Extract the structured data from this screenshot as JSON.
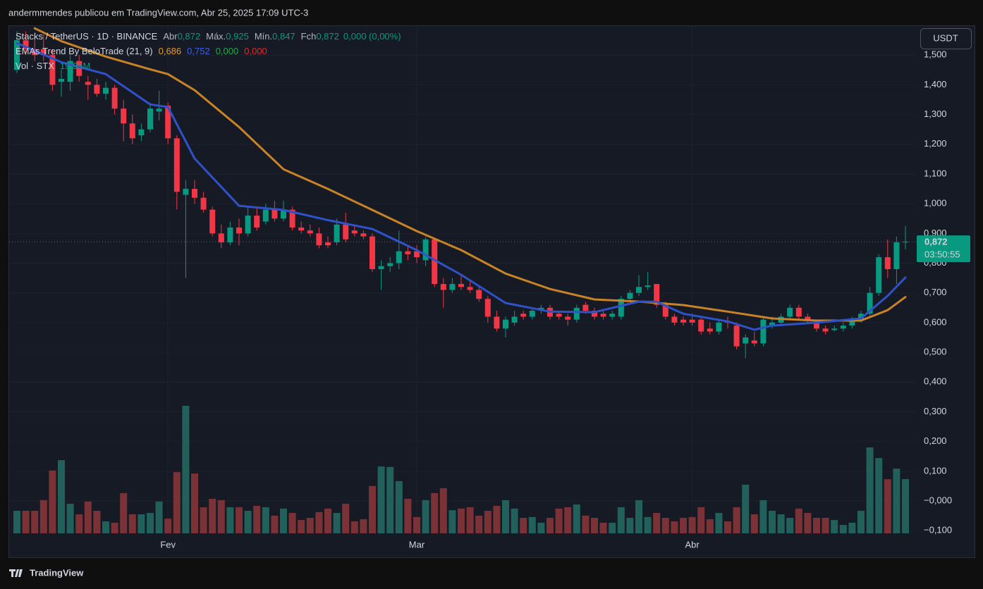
{
  "header": "andermmendes publicou em TradingView.com, Abr 25, 2025 17:09 UTC-3",
  "currency_button": "USDT",
  "footer_logo": "TradingView",
  "legend": {
    "symbol": "Stacks / TetherUS · 1D · BINANCE",
    "ohlc": [
      {
        "label": "Abr",
        "value": "0,872"
      },
      {
        "label": "Máx.",
        "value": "0,925"
      },
      {
        "label": "Mín.",
        "value": "0,847"
      },
      {
        "label": "Fch",
        "value": "0,872"
      }
    ],
    "change": "0,000 (0,00%)",
    "indicator": "EMAs Trend By BeloTrade (21, 9)",
    "indicator_values": [
      "0,686",
      "0,752",
      "0,000",
      "0,000"
    ],
    "volume": "Vol · STX",
    "volume_value": "19.95M"
  },
  "price_label": {
    "value": 0.872,
    "label": "0,872",
    "countdown": "03:50:55"
  },
  "chart_data": {
    "type": "candlestick",
    "up_color": "#089981",
    "down_color": "#f23645",
    "volume_colors": {
      "up": "#22605c",
      "down": "#7b3237"
    },
    "categories": [
      null,
      null,
      null,
      null,
      null,
      null,
      null,
      null,
      null,
      null,
      null,
      null,
      null,
      null,
      null,
      null,
      null,
      "Fev",
      null,
      null,
      null,
      null,
      null,
      null,
      null,
      null,
      null,
      null,
      null,
      null,
      null,
      null,
      null,
      null,
      null,
      null,
      null,
      null,
      null,
      null,
      null,
      null,
      null,
      null,
      null,
      "Mar",
      null,
      null,
      null,
      null,
      null,
      null,
      null,
      null,
      null,
      null,
      null,
      null,
      null,
      null,
      null,
      null,
      null,
      null,
      null,
      null,
      null,
      null,
      null,
      null,
      null,
      null,
      null,
      null,
      null,
      null,
      "Abr",
      null,
      null,
      null,
      null,
      null,
      null,
      null,
      null,
      null,
      null,
      null,
      null,
      null,
      null,
      null,
      null,
      null,
      null,
      null,
      null,
      null,
      null,
      null,
      null
    ],
    "candles": [
      [
        1.45,
        1.58,
        1.44,
        1.55
      ],
      [
        1.55,
        1.58,
        1.5,
        1.52
      ],
      [
        1.52,
        1.56,
        1.48,
        1.5
      ],
      [
        1.52,
        1.57,
        1.48,
        1.5
      ],
      [
        1.5,
        1.52,
        1.38,
        1.4
      ],
      [
        1.41,
        1.45,
        1.36,
        1.42
      ],
      [
        1.41,
        1.5,
        1.38,
        1.48
      ],
      [
        1.48,
        1.5,
        1.41,
        1.43
      ],
      [
        1.41,
        1.43,
        1.35,
        1.4
      ],
      [
        1.4,
        1.42,
        1.36,
        1.37
      ],
      [
        1.37,
        1.41,
        1.35,
        1.39
      ],
      [
        1.39,
        1.4,
        1.3,
        1.32
      ],
      [
        1.32,
        1.35,
        1.21,
        1.27
      ],
      [
        1.27,
        1.3,
        1.2,
        1.22
      ],
      [
        1.23,
        1.27,
        1.21,
        1.25
      ],
      [
        1.25,
        1.34,
        1.24,
        1.32
      ],
      [
        1.31,
        1.38,
        1.28,
        1.32
      ],
      [
        1.33,
        1.34,
        1.2,
        1.22
      ],
      [
        1.22,
        1.23,
        0.98,
        1.04
      ],
      [
        1.03,
        1.08,
        0.75,
        1.05
      ],
      [
        1.05,
        1.08,
        1.0,
        1.02
      ],
      [
        1.02,
        1.04,
        0.97,
        0.98
      ],
      [
        0.98,
        0.99,
        0.89,
        0.9
      ],
      [
        0.9,
        0.93,
        0.85,
        0.87
      ],
      [
        0.87,
        0.94,
        0.86,
        0.92
      ],
      [
        0.92,
        0.95,
        0.86,
        0.9
      ],
      [
        0.9,
        0.99,
        0.89,
        0.96
      ],
      [
        0.96,
        0.99,
        0.91,
        0.92
      ],
      [
        0.94,
        1.0,
        0.93,
        0.98
      ],
      [
        0.98,
        1.01,
        0.94,
        0.95
      ],
      [
        0.95,
        1.01,
        0.94,
        0.98
      ],
      [
        0.98,
        0.99,
        0.91,
        0.92
      ],
      [
        0.92,
        0.94,
        0.9,
        0.91
      ],
      [
        0.91,
        0.93,
        0.89,
        0.9
      ],
      [
        0.9,
        0.92,
        0.85,
        0.86
      ],
      [
        0.87,
        0.89,
        0.85,
        0.86
      ],
      [
        0.87,
        0.95,
        0.86,
        0.93
      ],
      [
        0.93,
        0.97,
        0.87,
        0.88
      ],
      [
        0.91,
        0.93,
        0.89,
        0.9
      ],
      [
        0.9,
        0.91,
        0.88,
        0.89
      ],
      [
        0.89,
        0.9,
        0.77,
        0.78
      ],
      [
        0.78,
        0.81,
        0.71,
        0.79
      ],
      [
        0.79,
        0.82,
        0.77,
        0.8
      ],
      [
        0.8,
        0.91,
        0.78,
        0.84
      ],
      [
        0.84,
        0.86,
        0.81,
        0.83
      ],
      [
        0.84,
        0.86,
        0.8,
        0.82
      ],
      [
        0.81,
        0.89,
        0.79,
        0.88
      ],
      [
        0.88,
        0.88,
        0.72,
        0.73
      ],
      [
        0.73,
        0.75,
        0.65,
        0.71
      ],
      [
        0.71,
        0.75,
        0.7,
        0.73
      ],
      [
        0.73,
        0.76,
        0.71,
        0.72
      ],
      [
        0.72,
        0.74,
        0.7,
        0.71
      ],
      [
        0.71,
        0.72,
        0.67,
        0.68
      ],
      [
        0.68,
        0.69,
        0.6,
        0.62
      ],
      [
        0.62,
        0.64,
        0.57,
        0.58
      ],
      [
        0.58,
        0.62,
        0.55,
        0.61
      ],
      [
        0.6,
        0.64,
        0.59,
        0.62
      ],
      [
        0.63,
        0.64,
        0.61,
        0.62
      ],
      [
        0.62,
        0.65,
        0.61,
        0.64
      ],
      [
        0.64,
        0.66,
        0.63,
        0.65
      ],
      [
        0.65,
        0.66,
        0.61,
        0.62
      ],
      [
        0.63,
        0.64,
        0.61,
        0.62
      ],
      [
        0.62,
        0.63,
        0.59,
        0.61
      ],
      [
        0.61,
        0.66,
        0.6,
        0.65
      ],
      [
        0.66,
        0.67,
        0.63,
        0.64
      ],
      [
        0.64,
        0.65,
        0.61,
        0.62
      ],
      [
        0.63,
        0.64,
        0.61,
        0.62
      ],
      [
        0.62,
        0.64,
        0.61,
        0.63
      ],
      [
        0.62,
        0.69,
        0.61,
        0.68
      ],
      [
        0.68,
        0.71,
        0.67,
        0.7
      ],
      [
        0.7,
        0.76,
        0.69,
        0.72
      ],
      [
        0.72,
        0.77,
        0.71,
        0.725
      ],
      [
        0.73,
        0.73,
        0.65,
        0.66
      ],
      [
        0.66,
        0.67,
        0.61,
        0.62
      ],
      [
        0.62,
        0.63,
        0.59,
        0.6
      ],
      [
        0.61,
        0.62,
        0.59,
        0.6
      ],
      [
        0.61,
        0.63,
        0.59,
        0.6
      ],
      [
        0.61,
        0.62,
        0.56,
        0.57
      ],
      [
        0.58,
        0.6,
        0.56,
        0.57
      ],
      [
        0.57,
        0.61,
        0.56,
        0.6
      ],
      [
        0.605,
        0.62,
        0.58,
        0.6
      ],
      [
        0.59,
        0.6,
        0.51,
        0.52
      ],
      [
        0.53,
        0.56,
        0.48,
        0.55
      ],
      [
        0.54,
        0.57,
        0.52,
        0.53
      ],
      [
        0.53,
        0.62,
        0.52,
        0.61
      ],
      [
        0.59,
        0.62,
        0.58,
        0.6
      ],
      [
        0.6,
        0.63,
        0.59,
        0.62
      ],
      [
        0.62,
        0.66,
        0.61,
        0.65
      ],
      [
        0.65,
        0.66,
        0.61,
        0.62
      ],
      [
        0.62,
        0.63,
        0.6,
        0.61
      ],
      [
        0.6,
        0.61,
        0.57,
        0.58
      ],
      [
        0.58,
        0.59,
        0.56,
        0.57
      ],
      [
        0.575,
        0.59,
        0.57,
        0.58
      ],
      [
        0.58,
        0.6,
        0.57,
        0.59
      ],
      [
        0.59,
        0.62,
        0.58,
        0.61
      ],
      [
        0.61,
        0.64,
        0.6,
        0.63
      ],
      [
        0.63,
        0.72,
        0.62,
        0.7
      ],
      [
        0.7,
        0.83,
        0.69,
        0.82
      ],
      [
        0.82,
        0.88,
        0.75,
        0.78
      ],
      [
        0.78,
        0.89,
        0.73,
        0.87
      ],
      [
        0.872,
        0.925,
        0.847,
        0.872
      ]
    ],
    "volume": [
      8.3,
      8.3,
      8.3,
      12.2,
      23.1,
      26.9,
      10.9,
      7.0,
      11.7,
      8.3,
      4.4,
      3.9,
      14.8,
      7.0,
      7.0,
      7.5,
      11.7,
      5.4,
      22.5,
      46.9,
      22.0,
      9.6,
      12.7,
      12.2,
      9.6,
      9.6,
      8.3,
      10.1,
      9.6,
      6.5,
      9.1,
      7.5,
      4.9,
      5.7,
      7.8,
      9.1,
      7.5,
      10.9,
      4.4,
      5.2,
      17.4,
      24.6,
      24.4,
      19.2,
      12.7,
      6.0,
      12.2,
      14.8,
      16.6,
      8.5,
      9.1,
      9.6,
      6.5,
      8.3,
      10.1,
      12.2,
      9.1,
      5.7,
      6.0,
      3.9,
      5.7,
      9.1,
      9.6,
      10.6,
      6.5,
      5.7,
      3.9,
      3.9,
      9.6,
      5.7,
      12.2,
      6.0,
      7.5,
      5.7,
      4.4,
      5.7,
      6.0,
      9.6,
      5.2,
      7.5,
      4.4,
      9.6,
      17.9,
      7.0,
      12.2,
      8.3,
      7.0,
      5.7,
      9.1,
      7.5,
      5.7,
      5.7,
      4.9,
      3.1,
      3.9,
      8.3,
      31.6,
      27.7,
      19.9,
      23.8,
      19.95
    ],
    "lines": [
      {
        "color": "#c98327",
        "x": [
          2,
          5,
          10,
          15,
          17,
          20,
          25,
          30,
          35,
          40,
          45,
          50,
          55,
          60,
          65,
          70,
          75,
          80,
          85,
          90,
          95,
          98,
          100
        ],
        "values": [
          1.59,
          1.547,
          1.495,
          1.452,
          1.436,
          1.382,
          1.258,
          1.116,
          1.05,
          0.979,
          0.908,
          0.844,
          0.765,
          0.713,
          0.678,
          0.671,
          0.659,
          0.637,
          0.614,
          0.607,
          0.607,
          0.642,
          0.686
        ]
      },
      {
        "color": "#2f52c9",
        "x": [
          0,
          5,
          10,
          15,
          17,
          20,
          25,
          30,
          35,
          40,
          45,
          50,
          55,
          60,
          65,
          70,
          72,
          75,
          80,
          83,
          85,
          90,
          95,
          98,
          100
        ],
        "values": [
          1.54,
          1.476,
          1.436,
          1.334,
          1.325,
          1.152,
          0.993,
          0.979,
          0.945,
          0.915,
          0.844,
          0.761,
          0.666,
          0.637,
          0.635,
          0.671,
          0.67,
          0.63,
          0.604,
          0.576,
          0.59,
          0.6,
          0.614,
          0.69,
          0.752
        ]
      }
    ],
    "ylim": [
      -0.116,
      1.6
    ],
    "yticks": [
      {
        "value": -0.1,
        "label": "−0,100"
      },
      {
        "value": 0,
        "label": "−0,000"
      },
      {
        "value": 0.1,
        "label": "0,100"
      },
      {
        "value": 0.2,
        "label": "0,200"
      },
      {
        "value": 0.3,
        "label": "0,300"
      },
      {
        "value": 0.4,
        "label": "0,400"
      },
      {
        "value": 0.5,
        "label": "0,500"
      },
      {
        "value": 0.6,
        "label": "0,600"
      },
      {
        "value": 0.7,
        "label": "0,700"
      },
      {
        "value": 0.8,
        "label": "0,800"
      },
      {
        "value": 0.9,
        "label": "0,900"
      },
      {
        "value": 1.0,
        "label": "1,000"
      },
      {
        "value": 1.1,
        "label": "1,100"
      },
      {
        "value": 1.2,
        "label": "1,200"
      },
      {
        "value": 1.3,
        "label": "1,300"
      },
      {
        "value": 1.4,
        "label": "1,400"
      },
      {
        "value": 1.5,
        "label": "1,500"
      }
    ],
    "grid": true
  }
}
